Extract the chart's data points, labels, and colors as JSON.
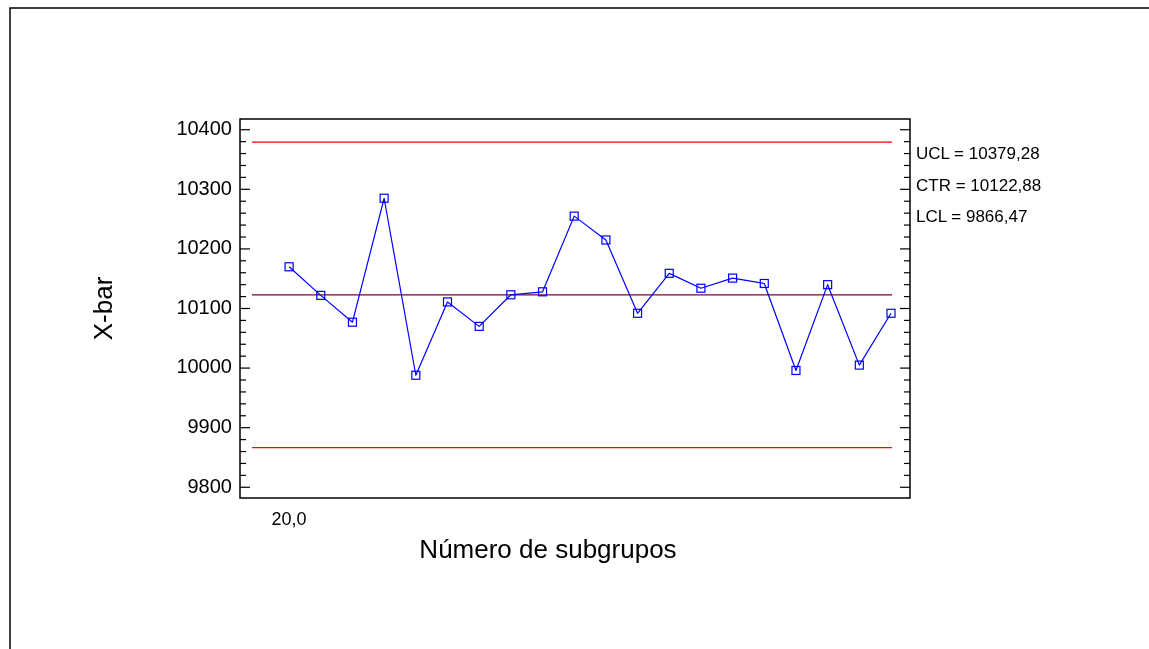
{
  "chart_data": {
    "type": "line",
    "xlabel": "Número de subgrupos",
    "ylabel": "X-bar",
    "categories": [
      "20,0",
      null,
      null,
      null,
      null,
      null,
      null,
      null,
      null,
      null,
      null,
      null,
      null,
      null,
      null,
      null,
      null,
      null,
      null,
      null
    ],
    "series": [
      {
        "color": "#0000ff",
        "values": [
          10170,
          10122,
          10077,
          10285,
          9988,
          10111,
          10070,
          10123,
          10128,
          10255,
          10215,
          10092,
          10159,
          10134,
          10151,
          10142,
          9996,
          10140,
          10005,
          10092
        ]
      }
    ],
    "ylim": [
      9782,
      10418
    ],
    "yticks": [
      9800,
      {
        "value": 9820,
        "label": null
      },
      {
        "value": 9840,
        "label": null
      },
      {
        "value": 9860,
        "label": null
      },
      {
        "value": 9880,
        "label": null
      },
      9900,
      {
        "value": 9920,
        "label": null
      },
      {
        "value": 9940,
        "label": null
      },
      {
        "value": 9960,
        "label": null
      },
      {
        "value": 9980,
        "label": null
      },
      10000,
      {
        "value": 10020,
        "label": null
      },
      {
        "value": 10040,
        "label": null
      },
      {
        "value": 10060,
        "label": null
      },
      {
        "value": 10080,
        "label": null
      },
      10100,
      {
        "value": 10120,
        "label": null
      },
      {
        "value": 10140,
        "label": null
      },
      {
        "value": 10160,
        "label": null
      },
      {
        "value": 10180,
        "label": null
      },
      10200,
      {
        "value": 10220,
        "label": null
      },
      {
        "value": 10240,
        "label": null
      },
      {
        "value": 10260,
        "label": null
      },
      {
        "value": 10280,
        "label": null
      },
      10300,
      {
        "value": 10320,
        "label": null
      },
      {
        "value": 10340,
        "label": null
      },
      {
        "value": 10360,
        "label": null
      },
      {
        "value": 10380,
        "label": null
      },
      10400
    ],
    "ref_lines": [
      {
        "axis": "y",
        "value": 10379.28,
        "color": "#ff0000"
      },
      {
        "axis": "y",
        "value": 10122.88,
        "color": "#800040"
      },
      {
        "axis": "y",
        "value": 9866.47,
        "color": "#ff0000"
      }
    ],
    "annotations": [
      "UCL = 10379,28",
      "CTR = 10122,88",
      "LCL = 9866,47"
    ],
    "marker": "square",
    "line_style": "solid",
    "grid": false
  }
}
